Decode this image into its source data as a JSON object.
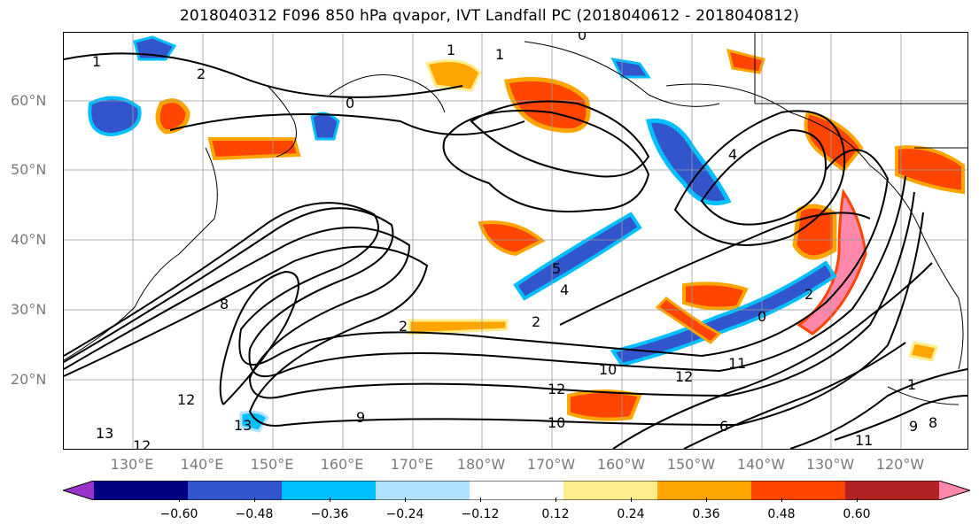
{
  "title": "2018040312 F096 850 hPa qvapor, IVT Landfall PC (2018040612 - 2018040812)",
  "map": {
    "lat_labels": [
      "60°N",
      "50°N",
      "40°N",
      "30°N",
      "20°N"
    ],
    "lon_labels": [
      "130°E",
      "140°E",
      "150°E",
      "160°E",
      "170°E",
      "180°W",
      "170°W",
      "160°W",
      "150°W",
      "140°W",
      "130°W",
      "120°W"
    ],
    "contour_labels": [
      "1",
      "1",
      "0",
      "0",
      "2",
      "2",
      "4",
      "4",
      "5",
      "2",
      "2",
      "8",
      "10",
      "12",
      "12",
      "9",
      "10",
      "13",
      "13",
      "11",
      "6",
      "11",
      "9",
      "8",
      "12",
      "0",
      "12",
      "1",
      "1"
    ]
  },
  "colorbar": {
    "colors": [
      "#9933cc",
      "#000080",
      "#3355cc",
      "#00bfff",
      "#b0e2ff",
      "#ffffff",
      "#ffec8b",
      "#ffa500",
      "#ff4500",
      "#b22222",
      "#ff88aa"
    ],
    "tick_labels": [
      "−0.60",
      "−0.48",
      "−0.36",
      "−0.24",
      "−0.12",
      "0.12",
      "0.24",
      "0.36",
      "0.48",
      "0.60"
    ]
  }
}
